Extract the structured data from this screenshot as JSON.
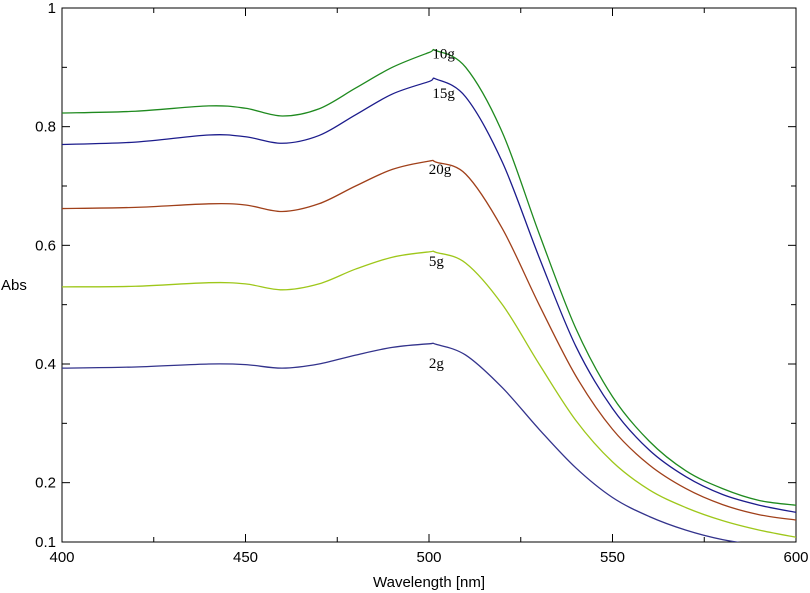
{
  "chart_data": {
    "type": "line",
    "title": "",
    "xlabel": "Wavelength [nm]",
    "ylabel": "Abs",
    "xlim": [
      400,
      600
    ],
    "ylim": [
      0.1,
      1
    ],
    "x_ticks": [
      {
        "value": 400,
        "label": "400"
      },
      {
        "value": 450,
        "label": "450"
      },
      {
        "value": 500,
        "label": "500"
      },
      {
        "value": 550,
        "label": "550"
      },
      {
        "value": 600,
        "label": "600"
      }
    ],
    "y_ticks": [
      {
        "value": 0.1,
        "label": "0.1"
      },
      {
        "value": 0.2,
        "label": "0.2"
      },
      {
        "value": 0.4,
        "label": "0.4"
      },
      {
        "value": 0.6,
        "label": "0.6"
      },
      {
        "value": 0.8,
        "label": "0.8"
      },
      {
        "value": 1,
        "label": "1"
      }
    ],
    "grid": false,
    "legend": "none",
    "series": [
      {
        "name": "10g",
        "color": "#1f8a1f",
        "label_at": [
          504,
          0.915
        ],
        "points": [
          [
            400,
            0.823
          ],
          [
            420,
            0.826
          ],
          [
            440,
            0.835
          ],
          [
            450,
            0.831
          ],
          [
            460,
            0.818
          ],
          [
            470,
            0.83
          ],
          [
            480,
            0.865
          ],
          [
            490,
            0.9
          ],
          [
            500,
            0.925
          ],
          [
            502,
            0.928
          ],
          [
            510,
            0.9
          ],
          [
            520,
            0.79
          ],
          [
            530,
            0.62
          ],
          [
            540,
            0.46
          ],
          [
            550,
            0.345
          ],
          [
            560,
            0.27
          ],
          [
            570,
            0.22
          ],
          [
            580,
            0.19
          ],
          [
            590,
            0.17
          ],
          [
            600,
            0.162
          ]
        ]
      },
      {
        "name": "15g",
        "color": "#1c1c8c",
        "label_at": [
          504,
          0.848
        ],
        "points": [
          [
            400,
            0.77
          ],
          [
            420,
            0.774
          ],
          [
            440,
            0.786
          ],
          [
            450,
            0.783
          ],
          [
            460,
            0.772
          ],
          [
            470,
            0.785
          ],
          [
            480,
            0.82
          ],
          [
            490,
            0.855
          ],
          [
            500,
            0.876
          ],
          [
            502,
            0.88
          ],
          [
            510,
            0.85
          ],
          [
            520,
            0.74
          ],
          [
            530,
            0.58
          ],
          [
            540,
            0.43
          ],
          [
            550,
            0.325
          ],
          [
            560,
            0.255
          ],
          [
            570,
            0.21
          ],
          [
            580,
            0.18
          ],
          [
            590,
            0.162
          ],
          [
            600,
            0.15
          ]
        ]
      },
      {
        "name": "20g",
        "color": "#a0401a",
        "label_at": [
          503,
          0.72
        ],
        "points": [
          [
            400,
            0.662
          ],
          [
            420,
            0.664
          ],
          [
            440,
            0.67
          ],
          [
            450,
            0.668
          ],
          [
            460,
            0.657
          ],
          [
            470,
            0.67
          ],
          [
            480,
            0.7
          ],
          [
            490,
            0.728
          ],
          [
            500,
            0.742
          ],
          [
            502,
            0.74
          ],
          [
            510,
            0.72
          ],
          [
            520,
            0.628
          ],
          [
            530,
            0.5
          ],
          [
            540,
            0.38
          ],
          [
            550,
            0.29
          ],
          [
            560,
            0.23
          ],
          [
            570,
            0.19
          ],
          [
            580,
            0.163
          ],
          [
            590,
            0.146
          ],
          [
            600,
            0.137
          ]
        ]
      },
      {
        "name": "5g",
        "color": "#9ec71a",
        "label_at": [
          502,
          0.565
        ],
        "points": [
          [
            400,
            0.53
          ],
          [
            420,
            0.531
          ],
          [
            440,
            0.537
          ],
          [
            450,
            0.535
          ],
          [
            460,
            0.525
          ],
          [
            470,
            0.535
          ],
          [
            480,
            0.56
          ],
          [
            490,
            0.58
          ],
          [
            500,
            0.589
          ],
          [
            502,
            0.588
          ],
          [
            510,
            0.57
          ],
          [
            520,
            0.5
          ],
          [
            530,
            0.4
          ],
          [
            540,
            0.305
          ],
          [
            550,
            0.235
          ],
          [
            560,
            0.188
          ],
          [
            570,
            0.158
          ],
          [
            580,
            0.136
          ],
          [
            590,
            0.12
          ],
          [
            600,
            0.108
          ]
        ]
      },
      {
        "name": "2g",
        "color": "#33338c",
        "label_at": [
          502,
          0.393
        ],
        "points": [
          [
            400,
            0.393
          ],
          [
            420,
            0.395
          ],
          [
            440,
            0.4
          ],
          [
            450,
            0.399
          ],
          [
            460,
            0.393
          ],
          [
            470,
            0.4
          ],
          [
            480,
            0.415
          ],
          [
            490,
            0.428
          ],
          [
            500,
            0.434
          ],
          [
            502,
            0.433
          ],
          [
            510,
            0.415
          ],
          [
            520,
            0.36
          ],
          [
            530,
            0.29
          ],
          [
            540,
            0.225
          ],
          [
            550,
            0.175
          ],
          [
            560,
            0.143
          ],
          [
            570,
            0.12
          ],
          [
            580,
            0.104
          ],
          [
            590,
            0.095
          ],
          [
            600,
            0.09
          ]
        ]
      }
    ]
  }
}
